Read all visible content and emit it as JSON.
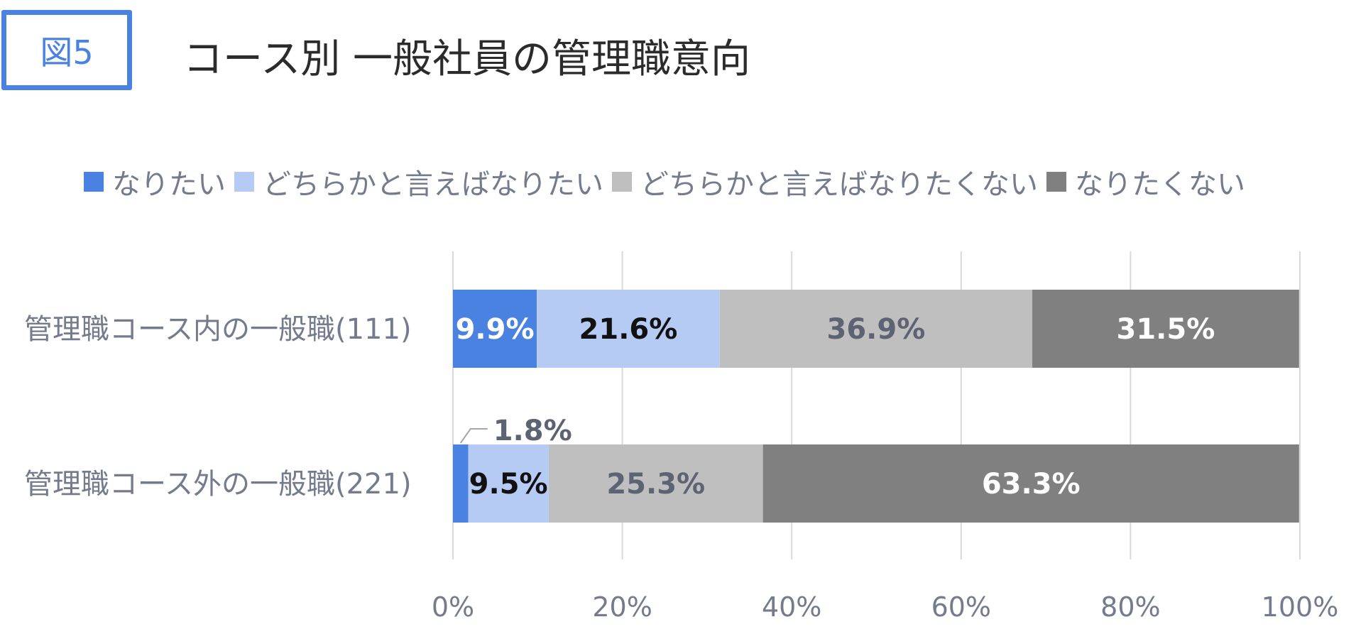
{
  "figure": {
    "badge": "図5",
    "title": "コース別 一般社員の管理職意向"
  },
  "chart_data": {
    "type": "bar",
    "orientation": "horizontal",
    "stacked": "100%",
    "categories": [
      "管理職コース内の一般職(111)",
      "管理職コース外の一般職(221)"
    ],
    "series": [
      {
        "name": "なりたい",
        "color": "#4a82e2",
        "label_color": "#ffffff",
        "values": [
          9.9,
          1.8
        ]
      },
      {
        "name": "どちらかと言えばなりたい",
        "color": "#b5cbf3",
        "label_color": "#111111",
        "values": [
          21.6,
          9.5
        ]
      },
      {
        "name": "どちらかと言えばなりたくない",
        "color": "#bfbfbf",
        "label_color": "#5d6373",
        "values": [
          36.9,
          25.3
        ]
      },
      {
        "name": "なりたくない",
        "color": "#808080",
        "label_color": "#ffffff",
        "values": [
          31.5,
          63.3
        ]
      }
    ],
    "data_labels": [
      [
        "9.9%",
        "21.6%",
        "36.9%",
        "31.5%"
      ],
      [
        "1.8%",
        "9.5%",
        "25.3%",
        "63.3%"
      ]
    ],
    "x_ticks": [
      "0%",
      "20%",
      "40%",
      "60%",
      "80%",
      "100%"
    ],
    "xlim": [
      0,
      100
    ],
    "grid": "vertical",
    "legend_position": "top",
    "xlabel": "",
    "ylabel": ""
  }
}
